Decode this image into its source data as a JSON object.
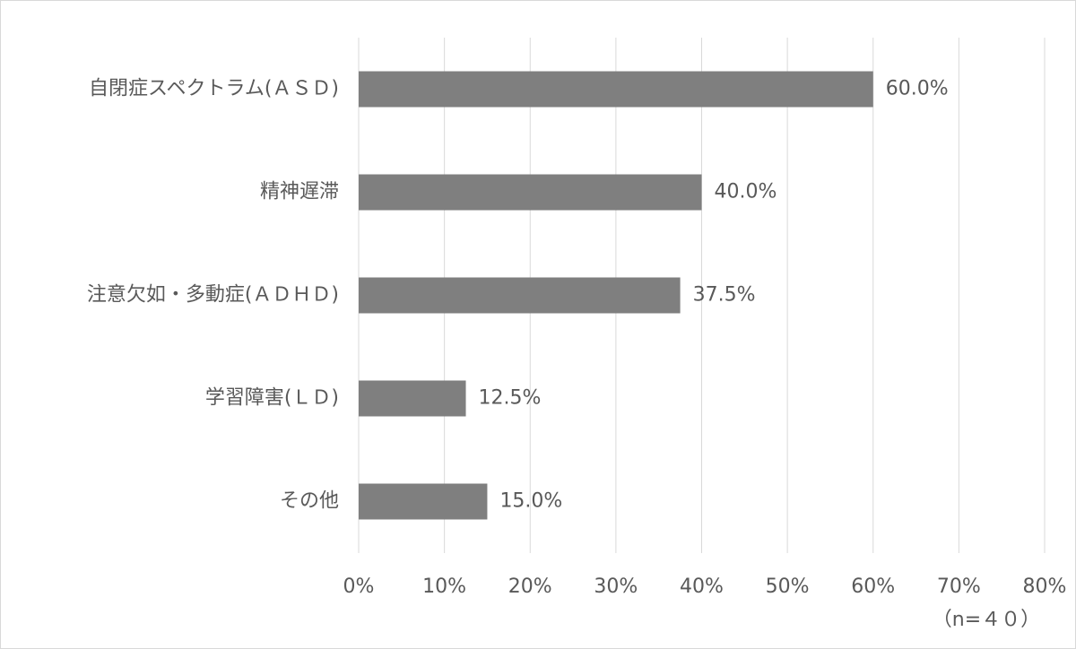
{
  "chart_data": {
    "type": "bar",
    "orientation": "horizontal",
    "categories": [
      "自閉症スペクトラム(ＡＳＤ)",
      "精神遅滞",
      "注意欠如・多動症(ＡＤＨＤ)",
      "学習障害(ＬＤ)",
      "その他"
    ],
    "values": [
      60,
      40,
      37.5,
      12.5,
      15
    ],
    "value_labels": [
      "60.0%",
      "40.0%",
      "37.5%",
      "12.5%",
      "15.0%"
    ],
    "color": "#7f7f7f",
    "xlim": [
      0,
      80
    ],
    "xticks": [
      {
        "value": 0,
        "label": "0%"
      },
      {
        "value": 10,
        "label": "10%"
      },
      {
        "value": 20,
        "label": "20%"
      },
      {
        "value": 30,
        "label": "30%"
      },
      {
        "value": 40,
        "label": "40%"
      },
      {
        "value": 50,
        "label": "50%"
      },
      {
        "value": 60,
        "label": "60%"
      },
      {
        "value": 70,
        "label": "70%"
      },
      {
        "value": 80,
        "label": "80%"
      }
    ],
    "grid": true,
    "annotation": "（n=４０）"
  }
}
